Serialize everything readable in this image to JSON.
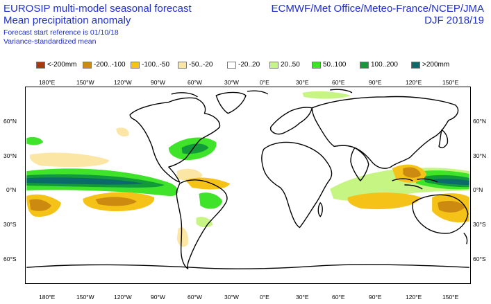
{
  "header": {
    "title_line1": "EUROSIP multi-model seasonal forecast",
    "title_line2": "Mean precipitation anomaly",
    "forecast_ref": "Forecast start reference is 01/10/18",
    "variance_note": "Variance-standardized mean",
    "centres": "ECMWF/Met Office/Meteo-France/NCEP/JMA",
    "season": "DJF 2018/19"
  },
  "legend": [
    {
      "label": "<-200mm",
      "color": "#a83a0a"
    },
    {
      "label": "-200..-100",
      "color": "#cc8a10"
    },
    {
      "label": "-100..-50",
      "color": "#f5c218"
    },
    {
      "label": "-50..-20",
      "color": "#fbe6a6"
    },
    {
      "label": "-20..20",
      "color": "#ffffff"
    },
    {
      "label": "20..50",
      "color": "#c6f584"
    },
    {
      "label": "50..100",
      "color": "#3fe32a"
    },
    {
      "label": "100..200",
      "color": "#129a3a"
    },
    {
      "label": ">200mm",
      "color": "#0a6b6a"
    }
  ],
  "axes": {
    "lon_top": [
      "180°E",
      "150°W",
      "120°W",
      "90°W",
      "60°W",
      "30°W",
      "0°E",
      "30°E",
      "60°E",
      "90°E",
      "120°E",
      "150°E"
    ],
    "lon_bottom": [
      "180°E",
      "150°W",
      "120°W",
      "90°W",
      "60°W",
      "30°W",
      "0°E",
      "30°E",
      "60°E",
      "90°E",
      "120°E",
      "150°E"
    ],
    "lat_left": [
      "60°N",
      "30°N",
      "0°N",
      "30°S",
      "60°S"
    ],
    "lat_right": [
      "60°N",
      "30°N",
      "0°N",
      "30°S",
      "60°S"
    ]
  }
}
